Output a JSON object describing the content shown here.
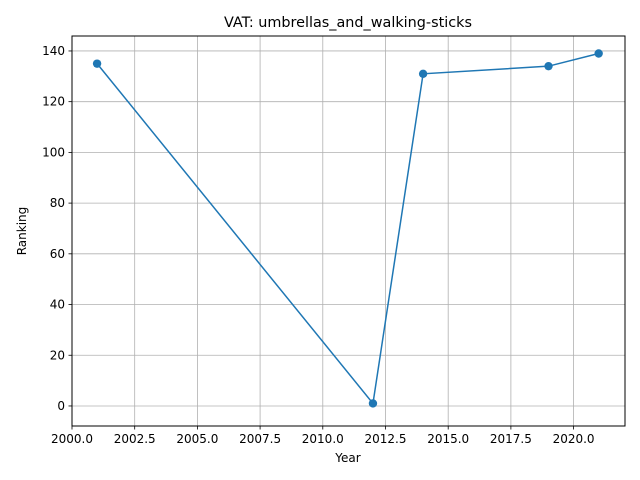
{
  "chart_data": {
    "type": "line",
    "title": "VAT: umbrellas_and_walking-sticks",
    "xlabel": "Year",
    "ylabel": "Ranking",
    "x": [
      2001,
      2012,
      2014,
      2019,
      2021
    ],
    "series": [
      {
        "values": [
          135,
          1,
          131,
          134,
          139
        ]
      }
    ],
    "xlim": [
      2000,
      2022.05
    ],
    "ylim": [
      -7.9,
      145.9
    ],
    "xticks": [
      "2000.0",
      "2002.5",
      "2005.0",
      "2007.5",
      "2010.0",
      "2012.5",
      "2015.0",
      "2017.5",
      "2020.0"
    ],
    "yticks": [
      "0",
      "20",
      "40",
      "60",
      "80",
      "100",
      "120",
      "140"
    ],
    "grid": true,
    "marker": "circle",
    "colors": {
      "line": "#1f77b4",
      "grid": "#b0b0b0",
      "axes": "#000000"
    }
  }
}
